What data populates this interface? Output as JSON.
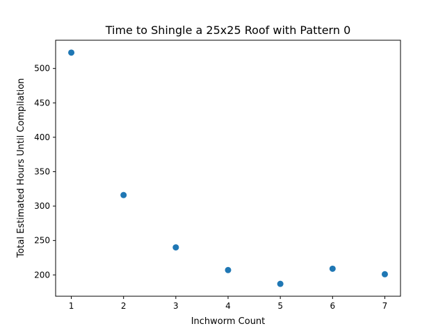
{
  "chart_data": {
    "type": "scatter",
    "title": "Time to Shingle a 25x25 Roof with Pattern 0",
    "xlabel": "Inchworm Count",
    "ylabel": "Total Estimated Hours Until Compilation",
    "x": [
      1,
      2,
      3,
      4,
      5,
      6,
      7
    ],
    "y": [
      523,
      316,
      240,
      207,
      187,
      209,
      201
    ],
    "xlim": [
      0.7,
      7.3
    ],
    "ylim": [
      169,
      541
    ],
    "xticks": [
      1,
      2,
      3,
      4,
      5,
      6,
      7
    ],
    "yticks": [
      200,
      250,
      300,
      350,
      400,
      450,
      500
    ],
    "marker_color": "#1f77b4",
    "grid": false,
    "legend": "none"
  }
}
